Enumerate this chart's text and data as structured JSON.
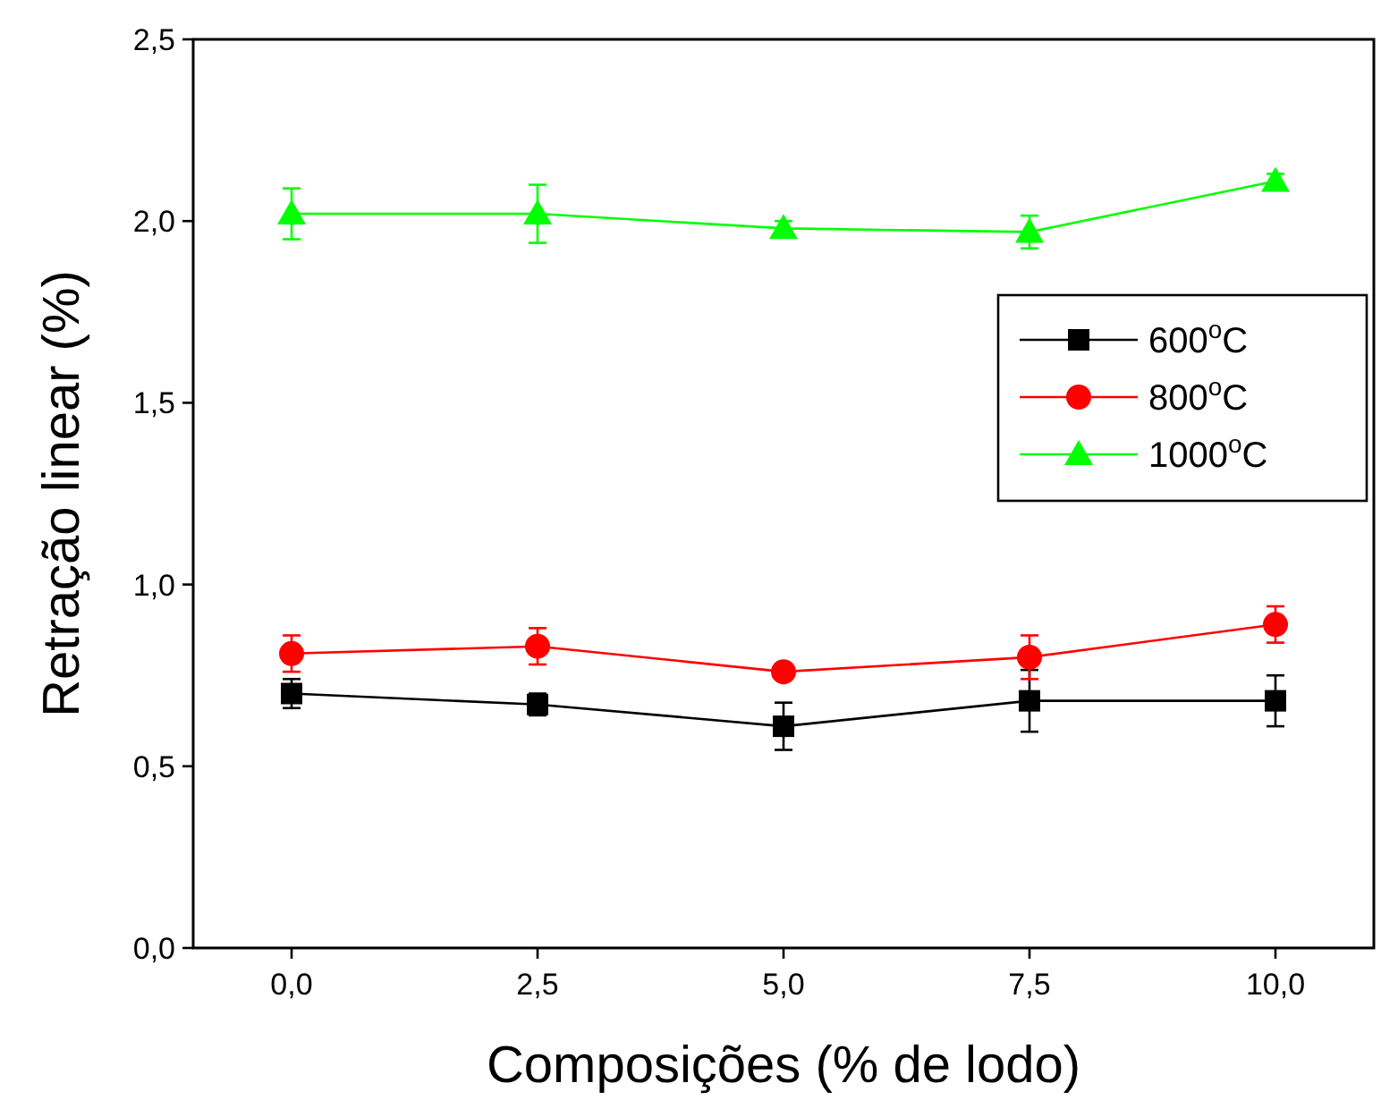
{
  "chart_data": {
    "type": "line",
    "xlabel": "Composições (% de lodo)",
    "ylabel": "Retração linear (%)",
    "x": [
      0,
      2.5,
      5,
      7.5,
      10
    ],
    "xlim": [
      -1,
      11
    ],
    "xticks": [
      {
        "value": 0,
        "label": "0,0"
      },
      {
        "value": 2.5,
        "label": "2,5"
      },
      {
        "value": 5,
        "label": "5,0"
      },
      {
        "value": 7.5,
        "label": "7,5"
      },
      {
        "value": 10,
        "label": "10,0"
      }
    ],
    "ylim": [
      0,
      2.5
    ],
    "yticks": [
      {
        "value": 0,
        "label": "0,0"
      },
      {
        "value": 0.5,
        "label": "0,5"
      },
      {
        "value": 1,
        "label": "1,0"
      },
      {
        "value": 1.5,
        "label": "1,5"
      },
      {
        "value": 2,
        "label": "2,0"
      },
      {
        "value": 2.5,
        "label": "2,5"
      }
    ],
    "legend": "right",
    "grid": false,
    "series": [
      {
        "name": "600$^{o}$C",
        "color": "#000000",
        "marker": "square",
        "values": [
          0.7,
          0.67,
          0.61,
          0.68,
          0.68
        ],
        "errors": [
          0.04,
          0.03,
          0.065,
          0.085,
          0.07
        ]
      },
      {
        "name": "800$^{o}$C",
        "color": "#ff0000",
        "marker": "circle",
        "values": [
          0.81,
          0.83,
          0.76,
          0.8,
          0.89
        ],
        "errors": [
          0.05,
          0.05,
          0.015,
          0.06,
          0.05
        ]
      },
      {
        "name": "1000$^{o}$C",
        "color": "#00ff00",
        "marker": "triangle",
        "values": [
          2.02,
          2.02,
          1.98,
          1.97,
          2.11
        ],
        "errors": [
          0.07,
          0.08,
          0.02,
          0.045,
          0.02
        ]
      }
    ]
  }
}
